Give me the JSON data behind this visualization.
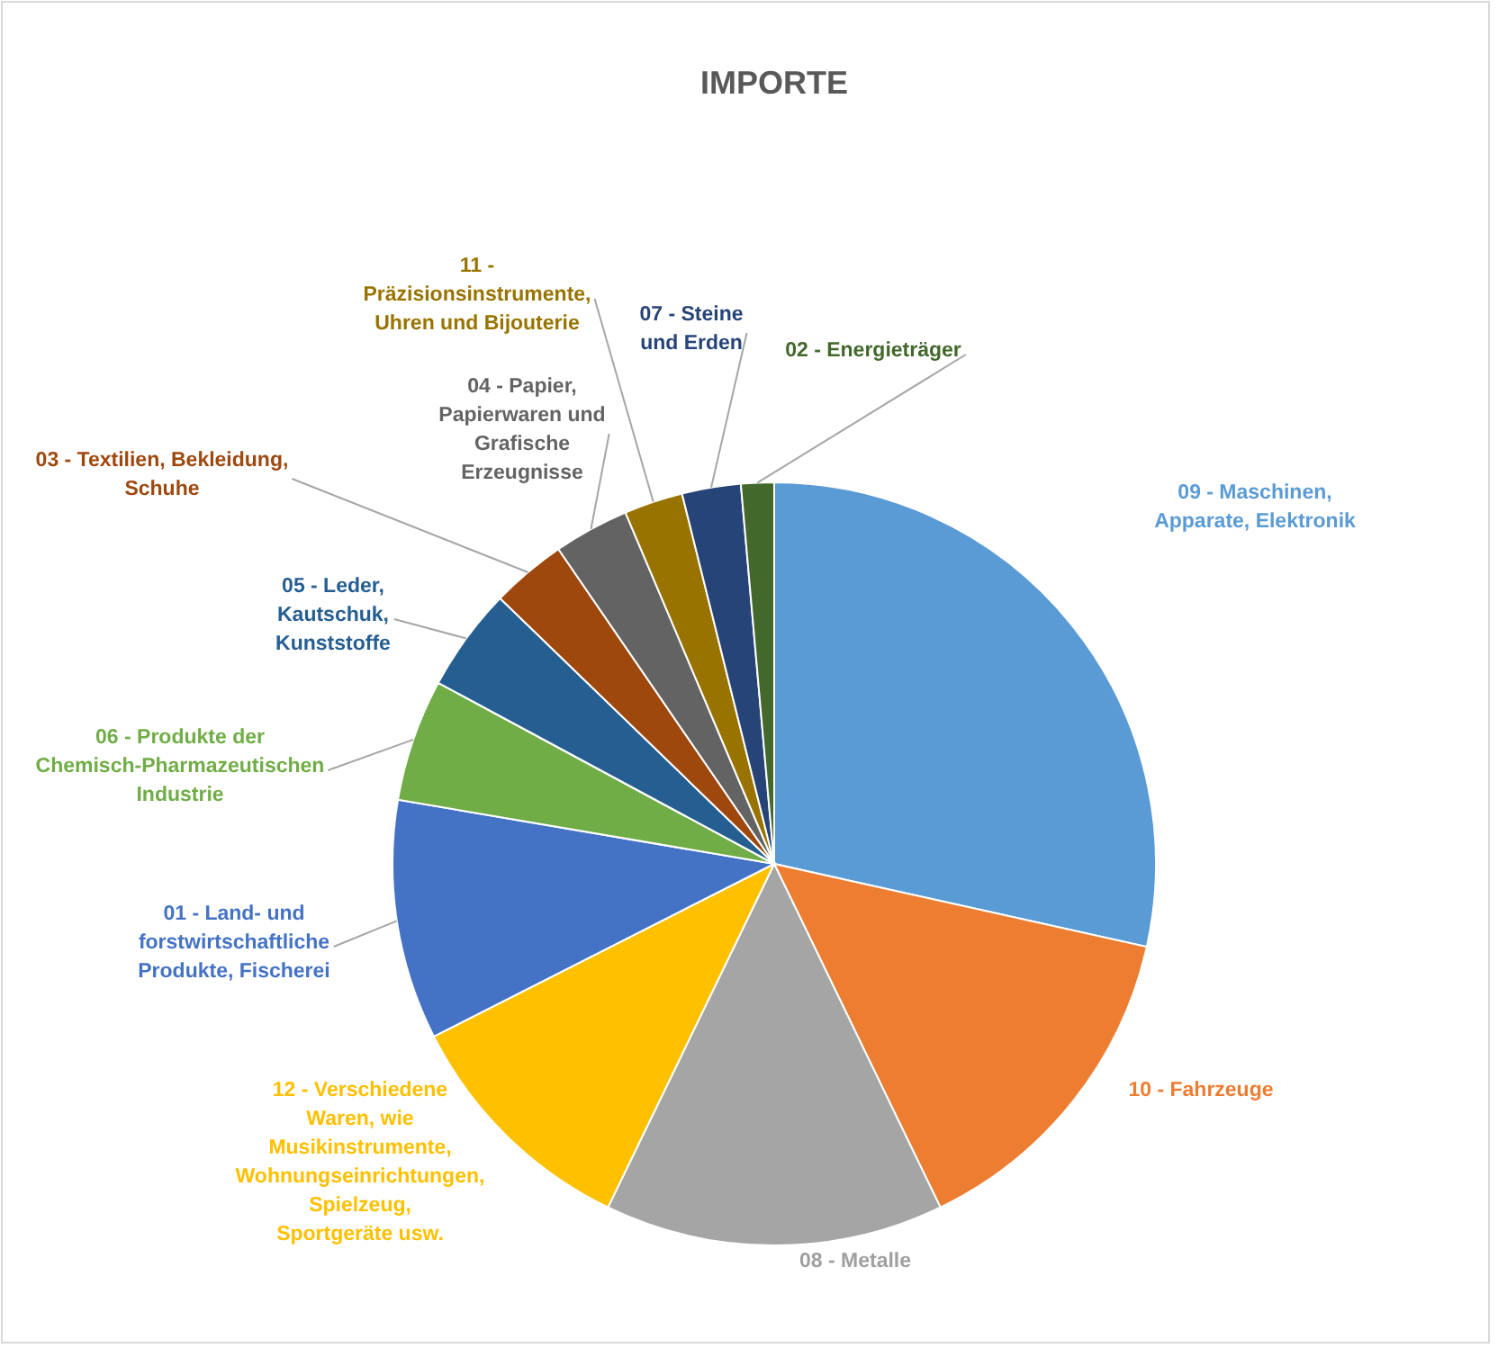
{
  "chart_data": {
    "type": "pie",
    "title": "IMPORTE",
    "categories": [
      "09 - Maschinen, Apparate, Elektronik",
      "10 - Fahrzeuge",
      "08 - Metalle",
      "12 - Verschiedene Waren, wie Musikinstrumente, Wohnungseinrichtungen, Spielzeug, Sportgeräte usw.",
      "01 - Land- und forstwirtschaftliche Produkte, Fischerei",
      "06 - Produkte der Chemisch-Pharmazeutischen Industrie",
      "05 - Leder, Kautschuk, Kunststoffe",
      "03 - Textilien, Bekleidung, Schuhe",
      "04 - Papier, Papierwaren und Grafische Erzeugnisse",
      "11 - Präzisionsinstrumente, Uhren und Bijouterie",
      "07 - Steine und Erden",
      "02 - Energieträger"
    ],
    "values": [
      28.6,
      14.4,
      14.4,
      10.4,
      10.2,
      5.2,
      4.4,
      3.2,
      3.2,
      2.5,
      2.5,
      1.4
    ],
    "colors": [
      "#5b9bd5",
      "#ed7d31",
      "#a5a5a5",
      "#ffc000",
      "#4472c4",
      "#70ad47",
      "#255e91",
      "#9e480e",
      "#636363",
      "#997300",
      "#264478",
      "#43682b"
    ]
  }
}
